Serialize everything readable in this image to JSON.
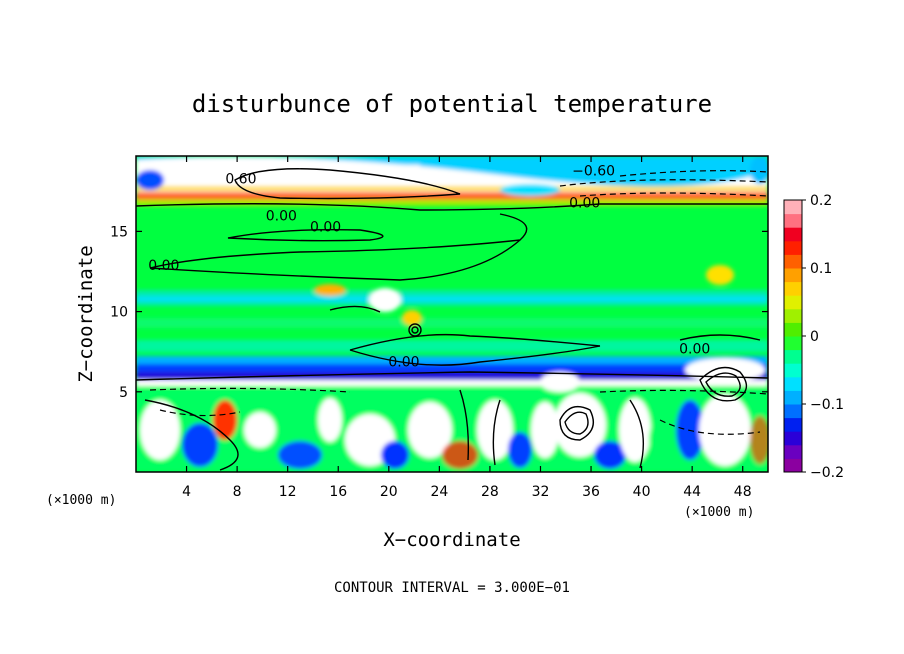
{
  "chart_data": {
    "type": "heatmap",
    "title": "disturbunce of potential temperature",
    "xlabel": "X−coordinate",
    "ylabel": "Z−coordinate",
    "x_unit_left": "(×1000 m)",
    "x_unit_right": "(×1000 m)",
    "xlim": [
      0,
      50
    ],
    "ylim": [
      0,
      19.7
    ],
    "x_ticks": [
      4,
      8,
      12,
      16,
      20,
      24,
      28,
      32,
      36,
      40,
      44,
      48
    ],
    "y_ticks": [
      5,
      10,
      15
    ],
    "colorbar": {
      "range": [
        -0.2,
        0.2
      ],
      "tick_values": [
        0.2,
        0.1,
        0,
        -0.1,
        -0.2
      ],
      "tick_labels": [
        "0.2",
        "0.1",
        "0",
        "−0.1",
        "−0.2"
      ],
      "colors": [
        "#8b00a0",
        "#6a00c0",
        "#2a00d8",
        "#0020f0",
        "#0070ff",
        "#00b0ff",
        "#00e0ff",
        "#00ffd0",
        "#00ff90",
        "#20ff30",
        "#50ee00",
        "#a0f000",
        "#e0f000",
        "#ffd000",
        "#ffa000",
        "#ff6000",
        "#ff2000",
        "#f00020",
        "#ff7080",
        "#ffb0b8"
      ]
    },
    "contour_labels": [
      {
        "text": "0.60",
        "x": 8.3,
        "y": 18.3
      },
      {
        "text": "−0.60",
        "x": 36.2,
        "y": 18.8
      },
      {
        "text": "0.00",
        "x": 11.5,
        "y": 16.0
      },
      {
        "text": "0.00",
        "x": 15.0,
        "y": 15.3
      },
      {
        "text": "0.00",
        "x": 35.5,
        "y": 16.8
      },
      {
        "text": "0.00",
        "x": 2.2,
        "y": 12.9
      },
      {
        "text": "0.00",
        "x": 21.2,
        "y": 6.9
      },
      {
        "text": "0.00",
        "x": 44.2,
        "y": 7.7
      }
    ],
    "contour_interval_note": "CONTOUR INTERVAL = 3.000E−01"
  }
}
